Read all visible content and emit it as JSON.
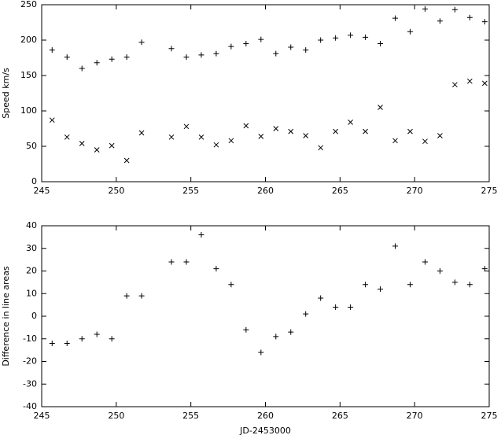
{
  "chart_data": [
    {
      "type": "scatter",
      "ylabel": "Speed km/s",
      "xlim": [
        245,
        275
      ],
      "xticks": [
        245,
        250,
        255,
        260,
        265,
        270,
        275
      ],
      "ylim": [
        0,
        250
      ],
      "yticks": [
        0,
        50,
        100,
        150,
        200,
        250
      ],
      "x": [
        245.7,
        246.7,
        247.7,
        248.7,
        249.7,
        250.7,
        251.7,
        253.7,
        254.7,
        255.7,
        256.7,
        257.7,
        258.7,
        259.7,
        260.7,
        261.7,
        262.7,
        263.7,
        264.7,
        265.7,
        266.7,
        267.7,
        268.7,
        269.7,
        270.7,
        271.7,
        272.7,
        273.7,
        274.7
      ],
      "series": [
        {
          "marker": "+",
          "color": "#000000",
          "values": [
            186,
            176,
            160,
            168,
            173,
            176,
            197,
            188,
            176,
            179,
            181,
            191,
            195,
            201,
            181,
            190,
            186,
            200,
            203,
            207,
            204,
            195,
            231,
            212,
            244,
            227,
            243,
            232,
            226
          ]
        },
        {
          "marker": "x",
          "color": "#000000",
          "values": [
            87,
            63,
            54,
            45,
            51,
            30,
            69,
            63,
            78,
            63,
            52,
            58,
            79,
            64,
            75,
            71,
            65,
            48,
            71,
            84,
            71,
            105,
            58,
            71,
            57,
            65,
            137,
            142,
            139
          ]
        }
      ]
    },
    {
      "type": "scatter",
      "ylabel": "Difference in line areas",
      "xlabel": "JD-2453000",
      "xlim": [
        245,
        275
      ],
      "xticks": [
        245,
        250,
        255,
        260,
        265,
        270,
        275
      ],
      "ylim": [
        -40,
        40
      ],
      "yticks": [
        -40,
        -30,
        -20,
        -10,
        0,
        10,
        20,
        30,
        40
      ],
      "x": [
        245.7,
        246.7,
        247.7,
        248.7,
        249.7,
        250.7,
        251.7,
        253.7,
        254.7,
        255.7,
        256.7,
        257.7,
        258.7,
        259.7,
        260.7,
        261.7,
        262.7,
        263.7,
        264.7,
        265.7,
        266.7,
        267.7,
        268.7,
        269.7,
        270.7,
        271.7,
        272.7,
        273.7,
        274.7
      ],
      "series": [
        {
          "marker": "+",
          "color": "#000000",
          "values": [
            -12,
            -12,
            -10,
            -8,
            -10,
            9,
            9,
            24,
            24,
            36,
            21,
            14,
            -6,
            -16,
            -9,
            -7,
            1,
            8,
            4,
            4,
            14,
            12,
            31,
            14,
            24,
            20,
            15,
            14,
            21
          ]
        }
      ]
    }
  ]
}
